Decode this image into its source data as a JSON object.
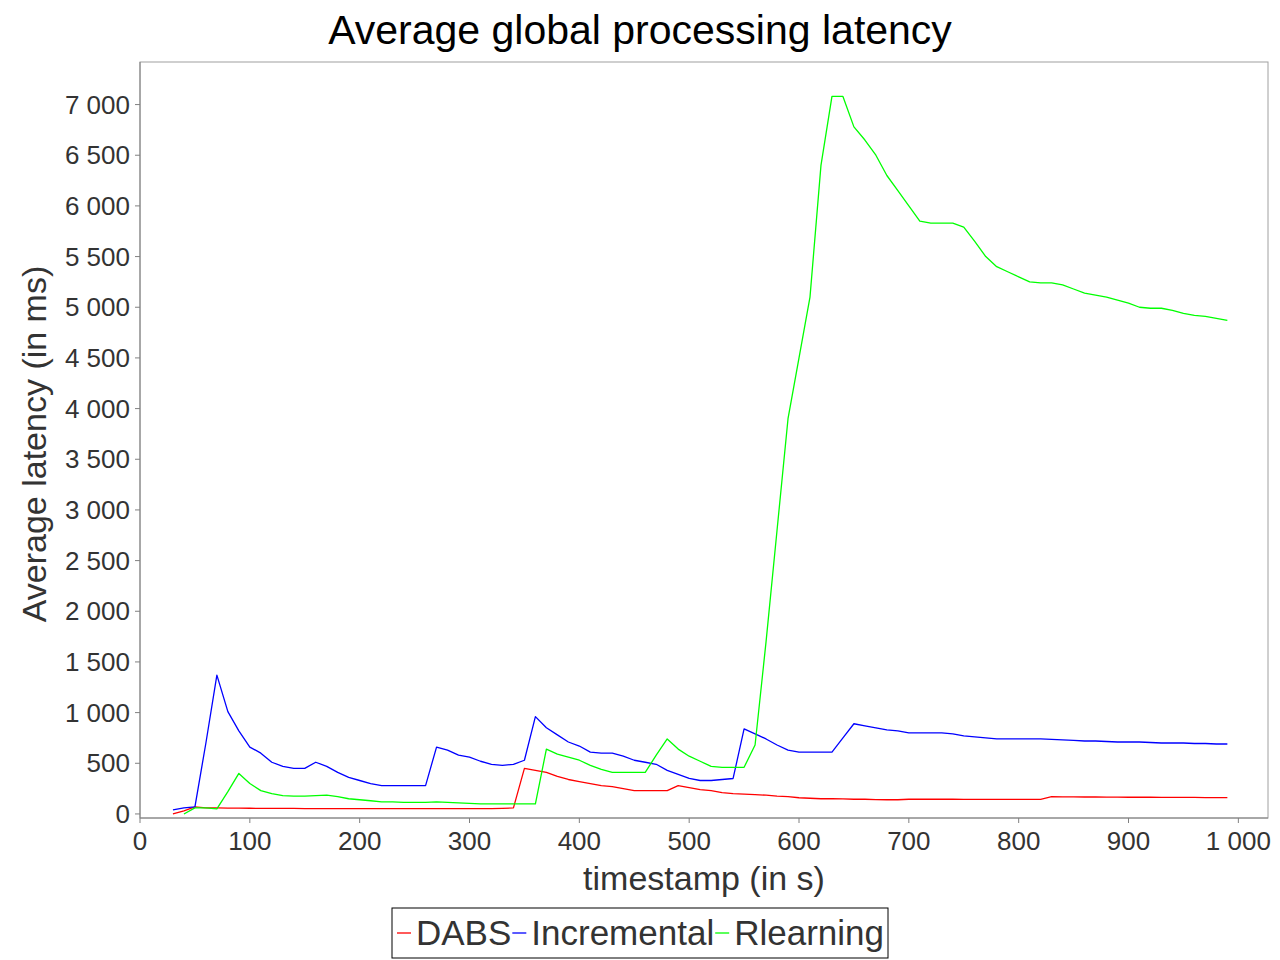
{
  "chart_data": {
    "type": "line",
    "title": "Average global processing latency",
    "x_label": "timestamp (in s)",
    "y_label": "Average latency (in ms)",
    "x": [
      30,
      40,
      50,
      60,
      70,
      80,
      90,
      100,
      110,
      120,
      130,
      140,
      150,
      160,
      170,
      180,
      190,
      200,
      210,
      220,
      230,
      240,
      250,
      260,
      270,
      280,
      290,
      300,
      310,
      320,
      330,
      340,
      350,
      360,
      370,
      380,
      390,
      400,
      410,
      420,
      430,
      440,
      450,
      460,
      470,
      480,
      490,
      500,
      510,
      520,
      530,
      540,
      550,
      560,
      570,
      580,
      590,
      600,
      610,
      620,
      630,
      640,
      650,
      660,
      670,
      680,
      690,
      700,
      710,
      720,
      730,
      740,
      750,
      760,
      770,
      780,
      790,
      800,
      810,
      820,
      830,
      840,
      850,
      860,
      870,
      880,
      890,
      900,
      910,
      920,
      930,
      940,
      950,
      960,
      970,
      980,
      990
    ],
    "series": [
      {
        "name": "DABS",
        "color": "#ff0000",
        "values": [
          0,
          30,
          70,
          60,
          60,
          58,
          57,
          56,
          55,
          55,
          54,
          54,
          53,
          53,
          53,
          52,
          52,
          52,
          52,
          52,
          52,
          52,
          52,
          52,
          52,
          52,
          52,
          52,
          52,
          52,
          55,
          60,
          450,
          430,
          410,
          370,
          340,
          320,
          300,
          280,
          270,
          250,
          230,
          230,
          230,
          230,
          280,
          260,
          240,
          230,
          210,
          200,
          195,
          190,
          185,
          175,
          170,
          160,
          155,
          150,
          150,
          148,
          145,
          145,
          142,
          140,
          140,
          145,
          145,
          145,
          145,
          145,
          144,
          144,
          143,
          143,
          143,
          143,
          143,
          143,
          170,
          168,
          168,
          167,
          167,
          166,
          166,
          165,
          165,
          165,
          164,
          164,
          163,
          163,
          162,
          162,
          162
        ]
      },
      {
        "name": "Incremental",
        "color": "#0000ff",
        "values": [
          40,
          60,
          70,
          700,
          1370,
          1010,
          820,
          660,
          600,
          510,
          470,
          450,
          450,
          510,
          470,
          410,
          360,
          330,
          300,
          280,
          280,
          280,
          280,
          280,
          660,
          630,
          580,
          560,
          520,
          490,
          480,
          490,
          530,
          960,
          850,
          780,
          710,
          670,
          610,
          600,
          600,
          570,
          530,
          510,
          490,
          430,
          390,
          350,
          330,
          330,
          340,
          350,
          840,
          790,
          740,
          680,
          630,
          610,
          610,
          610,
          610,
          750,
          890,
          870,
          850,
          830,
          820,
          800,
          800,
          800,
          800,
          790,
          770,
          760,
          750,
          740,
          740,
          740,
          740,
          740,
          735,
          730,
          725,
          720,
          720,
          715,
          710,
          710,
          710,
          705,
          700,
          700,
          700,
          695,
          695,
          690,
          690
        ]
      },
      {
        "name": "Rlearning",
        "color": "#00ff00",
        "values": [
          null,
          0,
          60,
          60,
          50,
          220,
          400,
          300,
          230,
          200,
          180,
          175,
          175,
          180,
          185,
          170,
          150,
          140,
          130,
          120,
          120,
          115,
          115,
          115,
          120,
          115,
          110,
          105,
          100,
          100,
          100,
          100,
          100,
          100,
          640,
          590,
          560,
          530,
          480,
          440,
          410,
          410,
          410,
          410,
          580,
          740,
          640,
          570,
          520,
          470,
          460,
          460,
          460,
          680,
          1700,
          2800,
          3900,
          4500,
          5100,
          6400,
          7080,
          7080,
          6780,
          6650,
          6500,
          6300,
          6150,
          6000,
          5850,
          5830,
          5830,
          5830,
          5790,
          5650,
          5500,
          5400,
          5350,
          5300,
          5250,
          5240,
          5240,
          5220,
          5180,
          5140,
          5120,
          5100,
          5070,
          5040,
          5000,
          4990,
          4990,
          4970,
          4940,
          4920,
          4910,
          4890,
          4870
        ]
      }
    ],
    "xlim": [
      0,
      1027
    ],
    "ylim": [
      -40,
      7420
    ],
    "xticks": [
      0,
      100,
      200,
      300,
      400,
      500,
      600,
      700,
      800,
      900,
      {
        "value": 1000,
        "label": "1 000"
      }
    ],
    "yticks": [
      0,
      500,
      {
        "value": 1000,
        "label": "1 000"
      },
      {
        "value": 1500,
        "label": "1 500"
      },
      {
        "value": 2000,
        "label": "2 000"
      },
      {
        "value": 2500,
        "label": "2 500"
      },
      {
        "value": 3000,
        "label": "3 000"
      },
      {
        "value": 3500,
        "label": "3 500"
      },
      {
        "value": 4000,
        "label": "4 000"
      },
      {
        "value": 4500,
        "label": "4 500"
      },
      {
        "value": 5000,
        "label": "5 000"
      },
      {
        "value": 5500,
        "label": "5 500"
      },
      {
        "value": 6000,
        "label": "6 000"
      },
      {
        "value": 6500,
        "label": "6 500"
      },
      {
        "value": 7000,
        "label": "7 000"
      }
    ],
    "grid": false,
    "legend": "bottom"
  }
}
